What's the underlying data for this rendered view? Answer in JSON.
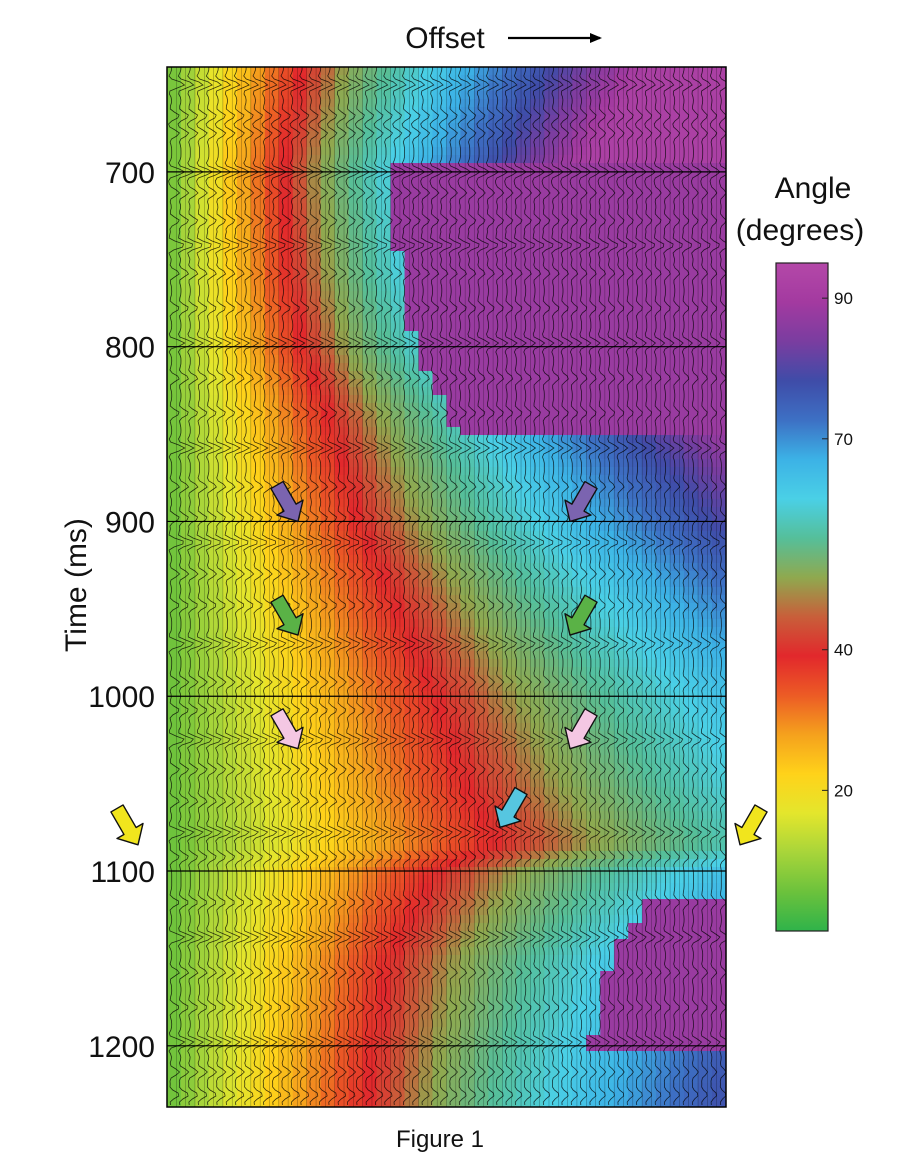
{
  "caption": "Figure 1",
  "colors": {
    "scale": [
      "#2fb34a",
      "#6cc23c",
      "#a8d53a",
      "#e4e62c",
      "#ffd21a",
      "#f5a11d",
      "#ec5b25",
      "#e2282c",
      "#c85f3a",
      "#8fa94f",
      "#55bf9a",
      "#4ad0e6",
      "#3cb2e6",
      "#3d70c4",
      "#3f4ca8",
      "#7a3da0",
      "#a33aa0",
      "#b448a8"
    ],
    "wiggle": "#000000",
    "grid": "#000000",
    "arrows": {
      "purple": "#7b64b0",
      "green": "#5ab246",
      "pink": "#f4c7e3",
      "cyan": "#56c6e0",
      "yellow": "#f1e51d"
    }
  },
  "chart_data": {
    "type": "heatmap",
    "title": "",
    "xlabel": "Offset",
    "x_direction": "increasing to the right",
    "ylabel": "Time (ms)",
    "y_ticks": [
      700,
      800,
      900,
      1000,
      1100,
      1200
    ],
    "ylim": [
      640,
      1235
    ],
    "y_inverted": true,
    "colorbar": {
      "title_line1": "Angle",
      "title_line2": "(degrees)",
      "ticks": [
        20,
        40,
        70,
        90
      ],
      "range": [
        0,
        95
      ]
    },
    "overlay": "seismic wiggle traces (variable-area fill)",
    "arrows": [
      {
        "color": "purple",
        "time": 900,
        "offset_position": "near"
      },
      {
        "color": "purple",
        "time": 900,
        "offset_position": "far"
      },
      {
        "color": "green",
        "time": 965,
        "offset_position": "near"
      },
      {
        "color": "green",
        "time": 965,
        "offset_position": "far"
      },
      {
        "color": "pink",
        "time": 1030,
        "offset_position": "near"
      },
      {
        "color": "pink",
        "time": 1030,
        "offset_position": "far"
      },
      {
        "color": "cyan",
        "time": 1075,
        "offset_position": "mid"
      },
      {
        "color": "yellow",
        "time": 1085,
        "offset_position": "left of panel"
      },
      {
        "color": "yellow",
        "time": 1085,
        "offset_position": "right of panel"
      }
    ]
  }
}
